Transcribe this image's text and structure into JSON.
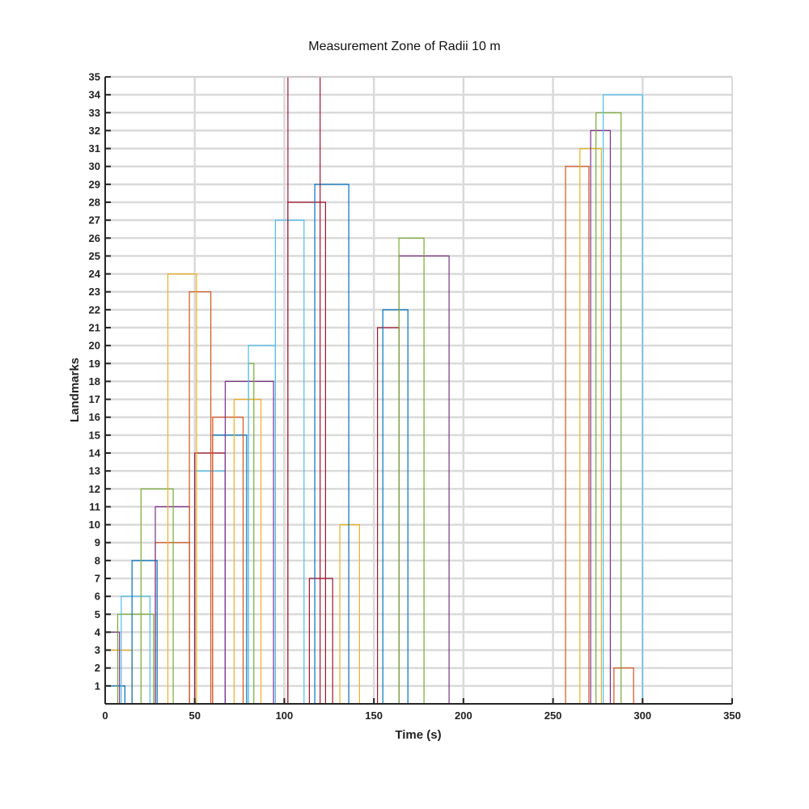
{
  "chart_data": {
    "type": "line",
    "title": "Measurement Zone of Radii 10 m",
    "xlabel": "Time (s)",
    "ylabel": "Landmarks",
    "xlim": [
      0,
      350
    ],
    "ylim": [
      0,
      35
    ],
    "xticks": [
      0,
      50,
      100,
      150,
      200,
      250,
      300,
      350
    ],
    "yticks": [
      1,
      2,
      3,
      4,
      5,
      6,
      7,
      8,
      9,
      10,
      11,
      12,
      13,
      14,
      15,
      16,
      17,
      18,
      19,
      20,
      21,
      22,
      23,
      24,
      25,
      26,
      27,
      28,
      29,
      30,
      31,
      32,
      33,
      34,
      35
    ],
    "grid": true,
    "step_style": "rectangular pulse per landmark: value is 0 outside the visible interval and equals the landmark id inside it",
    "series": [
      {
        "landmark": 1,
        "x_start": 0,
        "x_end": 11,
        "color": "#0072BD"
      },
      {
        "landmark": 2,
        "x_start": 284,
        "x_end": 295,
        "color": "#D95319"
      },
      {
        "landmark": 3,
        "x_start": 0,
        "x_end": 15,
        "color": "#EDB120"
      },
      {
        "landmark": 4,
        "x_start": 0,
        "x_end": 8,
        "color": "#7E2F8E"
      },
      {
        "landmark": 5,
        "x_start": 7,
        "x_end": 27,
        "color": "#77AC30"
      },
      {
        "landmark": 6,
        "x_start": 9,
        "x_end": 25,
        "color": "#4DBEEE"
      },
      {
        "landmark": 7,
        "x_start": 114,
        "x_end": 127,
        "color": "#A2142F"
      },
      {
        "landmark": 8,
        "x_start": 15,
        "x_end": 29,
        "color": "#0072BD"
      },
      {
        "landmark": 9,
        "x_start": 28,
        "x_end": 47,
        "color": "#D95319"
      },
      {
        "landmark": 10,
        "x_start": 131,
        "x_end": 142,
        "color": "#EDB120"
      },
      {
        "landmark": 11,
        "x_start": 28,
        "x_end": 47,
        "color": "#7E2F8E"
      },
      {
        "landmark": 12,
        "x_start": 20,
        "x_end": 38,
        "color": "#77AC30"
      },
      {
        "landmark": 13,
        "x_start": 50,
        "x_end": 67,
        "color": "#4DBEEE"
      },
      {
        "landmark": 14,
        "x_start": 50,
        "x_end": 67,
        "color": "#A2142F"
      },
      {
        "landmark": 15,
        "x_start": 60,
        "x_end": 79,
        "color": "#0072BD"
      },
      {
        "landmark": 16,
        "x_start": 60,
        "x_end": 77,
        "color": "#D95319"
      },
      {
        "landmark": 17,
        "x_start": 72,
        "x_end": 87,
        "color": "#EDB120"
      },
      {
        "landmark": 18,
        "x_start": 67,
        "x_end": 94,
        "color": "#7E2F8E"
      },
      {
        "landmark": 19,
        "x_start": 80,
        "x_end": 83,
        "color": "#77AC30"
      },
      {
        "landmark": 20,
        "x_start": 80,
        "x_end": 95,
        "color": "#4DBEEE"
      },
      {
        "landmark": 21,
        "x_start": 152,
        "x_end": 164,
        "color": "#A2142F"
      },
      {
        "landmark": 22,
        "x_start": 155,
        "x_end": 169,
        "color": "#0072BD"
      },
      {
        "landmark": 23,
        "x_start": 47,
        "x_end": 59,
        "color": "#D95319"
      },
      {
        "landmark": 24,
        "x_start": 35,
        "x_end": 51,
        "color": "#EDB120"
      },
      {
        "landmark": 25,
        "x_start": 164,
        "x_end": 192,
        "color": "#7E2F8E"
      },
      {
        "landmark": 26,
        "x_start": 164,
        "x_end": 178,
        "color": "#77AC30"
      },
      {
        "landmark": 27,
        "x_start": 95,
        "x_end": 111,
        "color": "#4DBEEE"
      },
      {
        "landmark": 28,
        "x_start": 102,
        "x_end": 123,
        "color": "#A2142F"
      },
      {
        "landmark": 29,
        "x_start": 117,
        "x_end": 136,
        "color": "#0072BD"
      },
      {
        "landmark": 30,
        "x_start": 257,
        "x_end": 270,
        "color": "#D95319"
      },
      {
        "landmark": 31,
        "x_start": 265,
        "x_end": 277,
        "color": "#EDB120"
      },
      {
        "landmark": 32,
        "x_start": 271,
        "x_end": 282,
        "color": "#7E2F8E"
      },
      {
        "landmark": 33,
        "x_start": 274,
        "x_end": 288,
        "color": "#77AC30"
      },
      {
        "landmark": 34,
        "x_start": 278,
        "x_end": 300,
        "color": "#4DBEEE"
      },
      {
        "landmark": 35,
        "x_start": 102,
        "x_end": 120,
        "color": "#A2142F"
      }
    ]
  }
}
